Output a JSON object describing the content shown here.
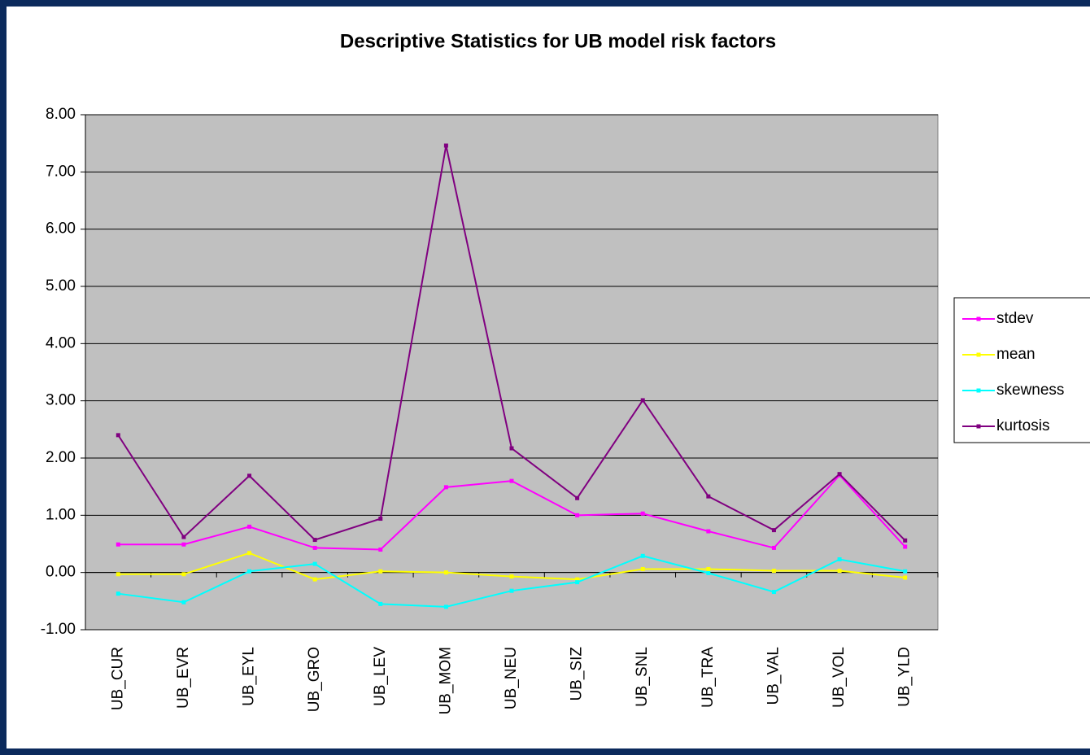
{
  "chart_data": {
    "type": "line",
    "title": "Descriptive Statistics for UB model risk factors",
    "categories": [
      "UB_CUR",
      "UB_EVR",
      "UB_EYL",
      "UB_GRO",
      "UB_LEV",
      "UB_MOM",
      "UB_NEU",
      "UB_SIZ",
      "UB_SNL",
      "UB_TRA",
      "UB_VAL",
      "UB_VOL",
      "UB_YLD"
    ],
    "series": [
      {
        "name": "stdev",
        "color": "#ff00ff",
        "values": [
          0.49,
          0.49,
          0.8,
          0.43,
          0.4,
          1.49,
          1.6,
          1.0,
          1.03,
          0.72,
          0.43,
          1.7,
          0.45
        ]
      },
      {
        "name": "mean",
        "color": "#ffff00",
        "values": [
          -0.03,
          -0.03,
          0.34,
          -0.12,
          0.02,
          0.0,
          -0.07,
          -0.12,
          0.06,
          0.06,
          0.03,
          0.03,
          -0.09
        ]
      },
      {
        "name": "skewness",
        "color": "#00ffff",
        "values": [
          -0.37,
          -0.52,
          0.02,
          0.15,
          -0.55,
          -0.6,
          -0.32,
          -0.17,
          0.29,
          -0.01,
          -0.34,
          0.23,
          0.02
        ]
      },
      {
        "name": "kurtosis",
        "color": "#800080",
        "values": [
          2.4,
          0.62,
          1.69,
          0.57,
          0.94,
          7.46,
          2.17,
          1.3,
          3.01,
          1.33,
          0.74,
          1.72,
          0.56
        ]
      }
    ],
    "ylim": [
      -1,
      8
    ],
    "yticks": [
      {
        "value": -1,
        "label": "-1.00"
      },
      {
        "value": 0,
        "label": "0.00"
      },
      {
        "value": 1,
        "label": "1.00"
      },
      {
        "value": 2,
        "label": "2.00"
      },
      {
        "value": 3,
        "label": "3.00"
      },
      {
        "value": 4,
        "label": "4.00"
      },
      {
        "value": 5,
        "label": "5.00"
      },
      {
        "value": 6,
        "label": "6.00"
      },
      {
        "value": 7,
        "label": "7.00"
      },
      {
        "value": 8,
        "label": "8.00"
      }
    ],
    "grid": true,
    "legend": "right",
    "plot_background": "#c0c0c0"
  }
}
